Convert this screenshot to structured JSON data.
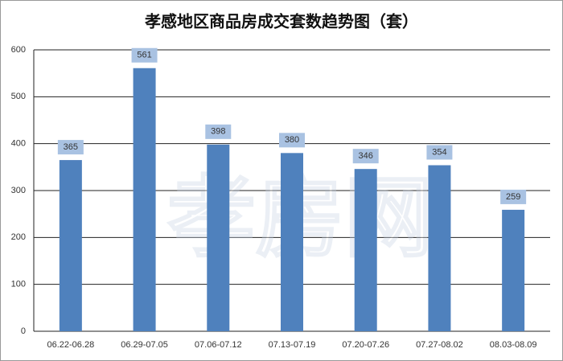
{
  "chart_data": {
    "type": "bar",
    "title": "孝感地区商品房成交套数趋势图（套）",
    "watermark": "孝房网",
    "categories": [
      "06.22-06.28",
      "06.29-07.05",
      "07.06-07.12",
      "07.13-07.19",
      "07.20-07.26",
      "07.27-08.02",
      "08.03-08.09"
    ],
    "values": [
      365,
      561,
      398,
      380,
      346,
      354,
      259
    ],
    "color": "#4f81bd",
    "label_color": "#a9c2e2",
    "ylim": [
      0,
      600
    ],
    "yticks": [
      0,
      100,
      200,
      300,
      400,
      500,
      600
    ],
    "grid": true
  }
}
